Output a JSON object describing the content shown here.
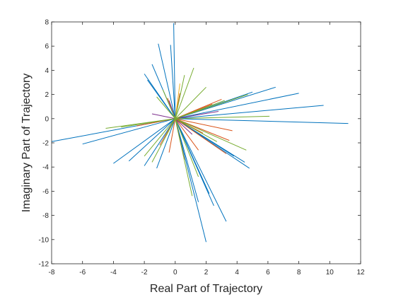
{
  "chart_data": {
    "type": "line",
    "title": "",
    "xlabel": "Real Part of Trajectory",
    "ylabel": "Imaginary Part of Trajectory",
    "xlim": [
      -8,
      12
    ],
    "ylim": [
      -12,
      8
    ],
    "xticks": [
      -8,
      -6,
      -4,
      -2,
      0,
      2,
      4,
      6,
      8,
      10,
      12
    ],
    "yticks": [
      -12,
      -10,
      -8,
      -6,
      -4,
      -2,
      0,
      2,
      4,
      6,
      8
    ],
    "grid": false,
    "legend": "none",
    "box": true,
    "series": [
      {
        "color": "#0072BD",
        "segments": [
          [
            [
              0,
              0
            ],
            [
              -8,
              -1.9
            ]
          ],
          [
            [
              0,
              0
            ],
            [
              -6,
              -2.1
            ]
          ],
          [
            [
              0,
              0
            ],
            [
              -4,
              -3.7
            ]
          ],
          [
            [
              0,
              0
            ],
            [
              -2,
              -3.9
            ]
          ],
          [
            [
              0,
              0
            ],
            [
              -1.2,
              -4.1
            ]
          ],
          [
            [
              0,
              0
            ],
            [
              -1.1,
              6.2
            ]
          ],
          [
            [
              0,
              0
            ],
            [
              -0.3,
              6.1
            ]
          ],
          [
            [
              0,
              0
            ],
            [
              -0.1,
              7.9
            ]
          ],
          [
            [
              0,
              0
            ],
            [
              2,
              -10.2
            ]
          ],
          [
            [
              0,
              0
            ],
            [
              3.3,
              -8.5
            ]
          ],
          [
            [
              0,
              0
            ],
            [
              4.5,
              -3.6
            ]
          ],
          [
            [
              0,
              0
            ],
            [
              4.8,
              -4.1
            ]
          ],
          [
            [
              0,
              0
            ],
            [
              6.5,
              2.6
            ]
          ],
          [
            [
              0,
              0
            ],
            [
              8,
              2.1
            ]
          ],
          [
            [
              0,
              0
            ],
            [
              9.6,
              1.1
            ]
          ],
          [
            [
              0,
              0
            ],
            [
              11.2,
              -0.4
            ]
          ],
          [
            [
              0,
              0
            ],
            [
              -2,
              3.7
            ]
          ],
          [
            [
              0,
              0
            ],
            [
              -1.5,
              4.5
            ]
          ],
          [
            [
              0,
              0
            ],
            [
              1.5,
              -6.9
            ]
          ],
          [
            [
              0,
              0
            ],
            [
              2.5,
              -7.2
            ]
          ],
          [
            [
              0,
              0
            ],
            [
              -3,
              -3.5
            ]
          ],
          [
            [
              0,
              0
            ],
            [
              5,
              2.2
            ]
          ],
          [
            [
              0,
              0
            ],
            [
              -1.8,
              3.2
            ]
          ],
          [
            [
              0,
              0
            ],
            [
              3.8,
              -3.1
            ]
          ],
          [
            [
              0,
              0
            ],
            [
              2.2,
              -6.2
            ]
          ]
        ]
      },
      {
        "color": "#D95319",
        "segments": [
          [
            [
              0,
              0
            ],
            [
              3.3,
              -2.9
            ]
          ],
          [
            [
              0,
              0
            ],
            [
              3.5,
              -1.8
            ]
          ],
          [
            [
              0,
              0
            ],
            [
              3,
              1.6
            ]
          ],
          [
            [
              0,
              0
            ],
            [
              3.7,
              -1
            ]
          ],
          [
            [
              0,
              0
            ],
            [
              -1,
              -2.2
            ]
          ],
          [
            [
              0,
              0
            ],
            [
              0.3,
              2.1
            ]
          ],
          [
            [
              0,
              0
            ],
            [
              -0.5,
              1.7
            ]
          ],
          [
            [
              0,
              0
            ],
            [
              1.5,
              -2.6
            ]
          ],
          [
            [
              0,
              0
            ],
            [
              -2.5,
              -0.6
            ]
          ],
          [
            [
              0,
              0
            ],
            [
              0.6,
              -3.4
            ]
          ],
          [
            [
              0,
              0
            ],
            [
              -0.4,
              -2.8
            ]
          ],
          [
            [
              0,
              0
            ],
            [
              2.4,
              1.2
            ]
          ],
          [
            [
              0,
              0
            ],
            [
              1.8,
              -1.2
            ]
          ]
        ]
      },
      {
        "color": "#EDB120",
        "segments": [
          [
            [
              0,
              0
            ],
            [
              0.3,
              2.9
            ]
          ],
          [
            [
              0,
              0
            ],
            [
              -0.6,
              -1.4
            ]
          ],
          [
            [
              0,
              0
            ],
            [
              1.7,
              0.8
            ]
          ]
        ]
      },
      {
        "color": "#7E2F8E",
        "segments": [
          [
            [
              0,
              0
            ],
            [
              2.8,
              0.6
            ]
          ],
          [
            [
              0,
              0
            ],
            [
              -1.5,
              0.4
            ]
          ],
          [
            [
              0,
              0
            ],
            [
              1.1,
              -1.3
            ]
          ],
          [
            [
              0,
              0
            ],
            [
              -0.4,
              1.5
            ]
          ]
        ]
      },
      {
        "color": "#77AC30",
        "segments": [
          [
            [
              0,
              0
            ],
            [
              -3.5,
              -0.7
            ]
          ],
          [
            [
              0,
              0
            ],
            [
              -4.5,
              -0.8
            ]
          ],
          [
            [
              0,
              0
            ],
            [
              1.2,
              4.2
            ]
          ],
          [
            [
              0,
              0
            ],
            [
              0.6,
              3.6
            ]
          ],
          [
            [
              0,
              0
            ],
            [
              4.7,
              2
            ]
          ],
          [
            [
              0,
              0
            ],
            [
              4.6,
              -2.6
            ]
          ],
          [
            [
              0,
              0
            ],
            [
              6.1,
              0.2
            ]
          ],
          [
            [
              0,
              0
            ],
            [
              1.1,
              -6.4
            ]
          ],
          [
            [
              0,
              0
            ],
            [
              -1.5,
              -3.6
            ]
          ],
          [
            [
              0,
              0
            ],
            [
              3.2,
              1.5
            ]
          ],
          [
            [
              0,
              0
            ],
            [
              -2,
              -3.1
            ]
          ],
          [
            [
              0,
              0
            ],
            [
              2.7,
              -1.9
            ]
          ],
          [
            [
              0,
              0
            ],
            [
              -0.8,
              2.4
            ]
          ],
          [
            [
              0,
              0
            ],
            [
              2,
              2.6
            ]
          ],
          [
            [
              0,
              0
            ],
            [
              -1.2,
              1.8
            ]
          ],
          [
            [
              0,
              0
            ],
            [
              1.5,
              -4.8
            ]
          ]
        ]
      }
    ]
  }
}
